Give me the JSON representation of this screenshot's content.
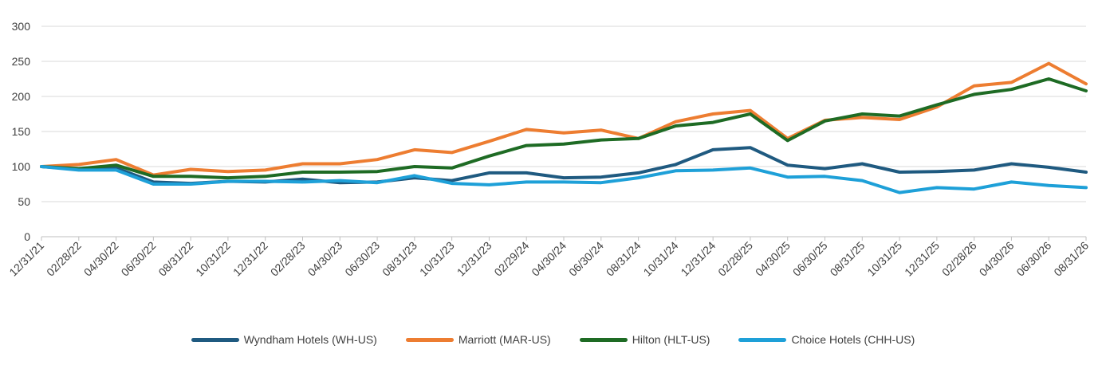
{
  "chart_data": {
    "type": "line",
    "title": "",
    "xlabel": "",
    "ylabel": "",
    "ylim": [
      0,
      300
    ],
    "yticks": [
      0,
      50,
      100,
      150,
      200,
      250,
      300
    ],
    "grid": "horizontal",
    "legend_position": "bottom",
    "categories": [
      "12/31/21",
      "02/28/22",
      "04/30/22",
      "06/30/22",
      "08/31/22",
      "10/31/22",
      "12/31/22",
      "02/28/23",
      "04/30/23",
      "06/30/23",
      "08/31/23",
      "10/31/23",
      "12/31/23",
      "02/29/24",
      "04/30/24",
      "06/30/24",
      "08/31/24",
      "10/31/24",
      "12/31/24",
      "02/28/25",
      "04/30/25",
      "06/30/25",
      "08/31/25",
      "10/31/25",
      "12/31/25",
      "02/28/26",
      "04/30/26",
      "06/30/26",
      "08/31/26"
    ],
    "series": [
      {
        "name": "Wyndham Hotels (WH-US)",
        "color": "#1f5a80",
        "values": [
          100,
          96,
          98,
          78,
          76,
          79,
          78,
          82,
          77,
          78,
          84,
          80,
          91,
          91,
          84,
          85,
          91,
          103,
          124,
          127,
          102,
          97,
          104,
          92,
          93,
          95,
          104,
          99,
          92
        ]
      },
      {
        "name": "Marriott (MAR-US)",
        "color": "#ed7d31",
        "values": [
          100,
          103,
          110,
          88,
          96,
          93,
          95,
          104,
          104,
          110,
          124,
          120,
          136,
          153,
          148,
          152,
          140,
          164,
          175,
          180,
          140,
          166,
          170,
          167,
          185,
          215,
          220,
          247,
          218
        ]
      },
      {
        "name": "Hilton (HLT-US)",
        "color": "#1e6b24",
        "values": [
          100,
          97,
          102,
          86,
          86,
          84,
          86,
          92,
          92,
          93,
          100,
          98,
          115,
          130,
          132,
          138,
          140,
          158,
          163,
          175,
          137,
          165,
          175,
          172,
          188,
          203,
          210,
          225,
          208
        ]
      },
      {
        "name": "Choice Hotels (CHH-US)",
        "color": "#1ea0d8",
        "values": [
          100,
          95,
          95,
          75,
          75,
          79,
          79,
          78,
          80,
          77,
          87,
          76,
          74,
          78,
          78,
          77,
          84,
          94,
          95,
          98,
          85,
          86,
          80,
          63,
          70,
          68,
          78,
          73,
          70
        ]
      }
    ]
  }
}
